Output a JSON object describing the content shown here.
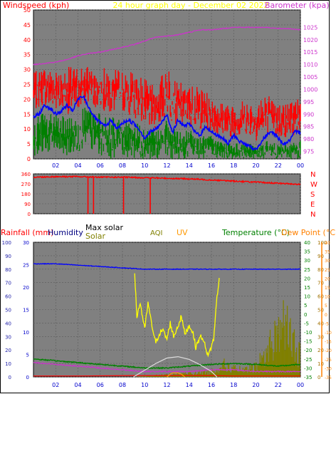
{
  "top_panel": {
    "left_title": "Windspeed (kph)",
    "center_title": "24 hour graph day - December 02 2022",
    "right_title": "Barometer (kpa)"
  },
  "bottom_panel": {
    "legend": {
      "rainfall": "Rainfall (mm)",
      "humidity": "Humidity",
      "max_solar": "Max solar",
      "solar": "Solar",
      "aqi": "AQI",
      "uv": "UV",
      "temperature": "Temperature (°C)",
      "dew_point": "Dew Point (°C)"
    }
  },
  "colors": {
    "plot_bg": "#808080",
    "grid": "#5a5a5a",
    "wind_gust": "#ff0000",
    "wind_avg": "#0000ff",
    "wind_low": "#008000",
    "barometer": "#cc33cc",
    "center_title": "#ffff00",
    "rain_axis": "#0000cc",
    "humidity_axis": "#2222aa",
    "solar": "#ffff00",
    "max_solar": "#dddddd",
    "uv": "#ff9900",
    "aqi": "#808000",
    "temp_axis": "#008000",
    "dew_axis": "#ff8000",
    "x_tick": "#0000cc"
  },
  "chart_data": [
    {
      "type": "line",
      "title": "24 hour graph day - December 02 2022",
      "xlabel": "",
      "x_ticks": [
        "02",
        "04",
        "06",
        "08",
        "10",
        "12",
        "14",
        "16",
        "18",
        "20",
        "22",
        "00"
      ],
      "x_range_hours": [
        0,
        24
      ],
      "grid": true,
      "left_axis": {
        "label": "Windspeed (kph)",
        "ticks": [
          0,
          5,
          10,
          15,
          20,
          25,
          30,
          35,
          40,
          45,
          50
        ],
        "ylim": [
          0,
          50
        ]
      },
      "right_axis": {
        "label": "Barometer (kpa)",
        "ticks": [
          975,
          980,
          985,
          990,
          995,
          1000,
          1005,
          1010,
          1015,
          1020,
          1025
        ],
        "ylim": [
          972,
          1032
        ]
      },
      "series": [
        {
          "name": "Windspeed gust",
          "axis": "left",
          "hours": [
            0,
            1,
            2,
            3,
            4,
            5,
            6,
            7,
            8,
            9,
            10,
            11,
            12,
            13,
            14,
            15,
            16,
            17,
            18,
            19,
            20,
            21,
            22,
            23,
            24
          ],
          "values": [
            22,
            25,
            24,
            23,
            25,
            27,
            24,
            23,
            24,
            22,
            18,
            16,
            24,
            18,
            18,
            16,
            14,
            13,
            12,
            14,
            12,
            15,
            13,
            13,
            15
          ],
          "range": [
            [
              16,
              29
            ],
            [
              18,
              31
            ],
            [
              16,
              31
            ],
            [
              15,
              31
            ],
            [
              16,
              31
            ],
            [
              19,
              31
            ],
            [
              16,
              31
            ],
            [
              15,
              30
            ],
            [
              16,
              30
            ],
            [
              14,
              29
            ],
            [
              11,
              27
            ],
            [
              10,
              24
            ],
            [
              14,
              32
            ],
            [
              11,
              26
            ],
            [
              11,
              25
            ],
            [
              10,
              24
            ],
            [
              9,
              21
            ],
            [
              8,
              19
            ],
            [
              7,
              18
            ],
            [
              8,
              20
            ],
            [
              6,
              19
            ],
            [
              8,
              22
            ],
            [
              7,
              19
            ],
            [
              7,
              19
            ],
            [
              9,
              21
            ]
          ]
        },
        {
          "name": "Windspeed avg",
          "axis": "left",
          "hours": [
            0,
            0.5,
            1,
            1.5,
            2,
            2.5,
            3,
            3.5,
            4,
            4.5,
            5,
            5.5,
            6,
            6.5,
            7,
            7.5,
            8,
            8.5,
            9,
            9.5,
            10,
            10.5,
            11,
            11.5,
            12,
            12.5,
            13,
            13.5,
            14,
            14.5,
            15,
            15.5,
            16,
            16.5,
            17,
            17.5,
            18,
            18.5,
            19,
            19.5,
            20,
            20.5,
            21,
            21.5,
            22,
            22.5,
            23,
            23.5,
            24
          ],
          "values": [
            14,
            15,
            18,
            17,
            15,
            16,
            18,
            16,
            20,
            21,
            17,
            14,
            12,
            11,
            13,
            10,
            12,
            13,
            12,
            10,
            7,
            9,
            10,
            12,
            15,
            9,
            13,
            11,
            12,
            9,
            8,
            11,
            9,
            8,
            7,
            5,
            8,
            6,
            5,
            4,
            3,
            6,
            8,
            9,
            7,
            5,
            6,
            9,
            9
          ]
        },
        {
          "name": "Windspeed low",
          "axis": "left",
          "hours": [
            0,
            1,
            2,
            3,
            4,
            5,
            6,
            7,
            8,
            9,
            10,
            11,
            12,
            13,
            14,
            15,
            16,
            17,
            18,
            19,
            20,
            21,
            22,
            23,
            24
          ],
          "values": [
            7,
            8,
            9,
            8,
            9,
            9,
            7,
            7,
            7,
            6,
            5,
            4,
            6,
            4,
            5,
            4,
            4,
            3,
            3,
            3,
            2,
            3,
            3,
            3,
            4
          ],
          "range": [
            [
              1,
              14
            ],
            [
              2,
              16
            ],
            [
              2,
              15
            ],
            [
              1,
              14
            ],
            [
              2,
              16
            ],
            [
              3,
              18
            ],
            [
              1,
              15
            ],
            [
              0,
              14
            ],
            [
              1,
              15
            ],
            [
              0,
              13
            ],
            [
              0,
              11
            ],
            [
              0,
              10
            ],
            [
              0,
              13
            ],
            [
              0,
              9
            ],
            [
              0,
              10
            ],
            [
              0,
              8
            ],
            [
              0,
              8
            ],
            [
              0,
              6
            ],
            [
              0,
              5
            ],
            [
              0,
              6
            ],
            [
              0,
              4
            ],
            [
              0,
              6
            ],
            [
              0,
              5
            ],
            [
              0,
              5
            ],
            [
              0,
              7
            ]
          ]
        },
        {
          "name": "Barometer",
          "axis": "right",
          "hours": [
            0,
            1,
            2,
            3,
            4,
            5,
            6,
            7,
            8,
            9,
            10,
            11,
            12,
            13,
            14,
            15,
            16,
            17,
            18,
            19,
            20,
            21,
            22,
            23,
            24
          ],
          "values": [
            1010,
            1010.5,
            1011,
            1012,
            1013.5,
            1014.5,
            1015,
            1016,
            1017,
            1018,
            1019.5,
            1021,
            1021.5,
            1022,
            1023,
            1024,
            1024,
            1024.5,
            1025,
            1025,
            1025,
            1025,
            1024.5,
            1024.5,
            1024
          ]
        }
      ]
    },
    {
      "type": "line",
      "title": "",
      "x_range_hours": [
        0,
        24
      ],
      "grid": true,
      "left_axis": {
        "label": "",
        "ticks": [
          0,
          90,
          180,
          270,
          360
        ],
        "ylim": [
          0,
          360
        ]
      },
      "right_axis_labels": [
        "N",
        "W",
        "S",
        "E",
        "N"
      ],
      "series": [
        {
          "name": "Wind direction",
          "hours": [
            0,
            2,
            4,
            6,
            8,
            10,
            12,
            14,
            16,
            18,
            20,
            22,
            24
          ],
          "values": [
            330,
            335,
            335,
            330,
            330,
            325,
            320,
            315,
            305,
            295,
            285,
            275,
            265
          ],
          "drops": [
            {
              "hour": 4.9,
              "value": 0
            },
            {
              "hour": 5.4,
              "value": 0
            },
            {
              "hour": 8.1,
              "value": 0
            },
            {
              "hour": 10.5,
              "value": 0
            }
          ]
        }
      ]
    },
    {
      "type": "line",
      "title": "",
      "x_ticks": [
        "02",
        "04",
        "06",
        "08",
        "10",
        "12",
        "14",
        "16",
        "18",
        "20",
        "22",
        "00"
      ],
      "x_range_hours": [
        0,
        24
      ],
      "grid": true,
      "axes": {
        "rainfall": {
          "label": "Rainfall (mm)",
          "ticks": [
            0,
            5,
            10,
            15,
            20,
            25,
            30
          ],
          "ylim": [
            0,
            30
          ]
        },
        "humidity": {
          "label": "Humidity",
          "ticks": [
            0,
            10,
            20,
            30,
            40,
            50,
            60,
            70,
            80,
            90,
            100
          ],
          "ylim": [
            0,
            100
          ]
        },
        "solar": {
          "label": "Solar",
          "ticks": [
            0,
            10,
            20,
            30,
            40,
            50,
            60,
            70,
            80,
            90,
            100
          ],
          "ylim": [
            0,
            100
          ]
        },
        "temperature": {
          "label": "Temperature (°C)",
          "ticks": [
            -35,
            -30,
            -25,
            -20,
            -15,
            -10,
            -5,
            0,
            5,
            10,
            15,
            20,
            25,
            30,
            35,
            40
          ],
          "ylim": [
            -35,
            40
          ]
        },
        "dew_point": {
          "label": "Dew Point (°C)",
          "ticks": [
            -35,
            -30,
            -25,
            -20,
            -15,
            -10,
            -5,
            0,
            5,
            10,
            15,
            20,
            25,
            30,
            35,
            40
          ],
          "ylim": [
            -35,
            40
          ]
        }
      },
      "series": [
        {
          "name": "Humidity",
          "axis": "humidity",
          "hours": [
            0,
            2,
            4,
            6,
            8,
            10,
            12,
            14,
            16,
            18,
            20,
            22,
            24
          ],
          "values": [
            84,
            84,
            83,
            82,
            81,
            80,
            80,
            80,
            80,
            80,
            80,
            80,
            80
          ]
        },
        {
          "name": "Temperature",
          "axis": "temperature",
          "hours": [
            0,
            2,
            4,
            6,
            8,
            10,
            12,
            14,
            16,
            18,
            20,
            22,
            24
          ],
          "values": [
            -25,
            -26,
            -27,
            -28,
            -29,
            -30,
            -30,
            -29,
            -28,
            -27.5,
            -28,
            -29,
            -28
          ]
        },
        {
          "name": "Dew Point",
          "axis": "dew_point",
          "hours": [
            0,
            2,
            4,
            6,
            8,
            10,
            12,
            14,
            16,
            18,
            20,
            22,
            24
          ],
          "values": [
            -27,
            -28,
            -29,
            -30,
            -31,
            -32,
            -32,
            -32,
            -31,
            -31,
            -32,
            -32,
            -32
          ]
        },
        {
          "name": "Rainfall",
          "axis": "rainfall",
          "hours": [
            0,
            4,
            9,
            16,
            18,
            24
          ],
          "values": [
            0.2,
            0.2,
            0.3,
            0.3,
            0.2,
            0.2
          ]
        },
        {
          "name": "Max solar",
          "axis": "solar",
          "hours": [
            9,
            10,
            11,
            12,
            13,
            14,
            15,
            16,
            16.5
          ],
          "values": [
            0,
            5,
            10,
            14,
            15,
            13,
            9,
            4,
            0
          ]
        },
        {
          "name": "Solar",
          "axis": "solar",
          "hours": [
            9.1,
            9.3,
            9.6,
            10,
            10.3,
            10.6,
            11,
            11.3,
            11.6,
            12,
            12.3,
            12.6,
            13,
            13.3,
            13.6,
            14,
            14.3,
            14.6,
            15,
            15.3,
            15.6,
            15.9,
            16.2,
            16.5,
            16.7
          ],
          "values": [
            75,
            45,
            55,
            35,
            55,
            40,
            25,
            32,
            35,
            28,
            40,
            30,
            38,
            45,
            32,
            38,
            34,
            22,
            30,
            28,
            16,
            20,
            28,
            60,
            72
          ]
        },
        {
          "name": "UV",
          "axis": "solar",
          "hours": [
            12,
            12.3,
            12.5,
            13,
            13.3,
            13.6
          ],
          "values": [
            0,
            2,
            3,
            3,
            2,
            0
          ]
        },
        {
          "name": "AQI",
          "axis": "solar",
          "hours": [
            0,
            9,
            16,
            17,
            18,
            19,
            20,
            21,
            22,
            22.5,
            23,
            23.5,
            24
          ],
          "values": [
            0,
            0,
            5,
            12,
            8,
            6,
            10,
            25,
            45,
            55,
            40,
            30,
            20
          ]
        }
      ]
    }
  ]
}
